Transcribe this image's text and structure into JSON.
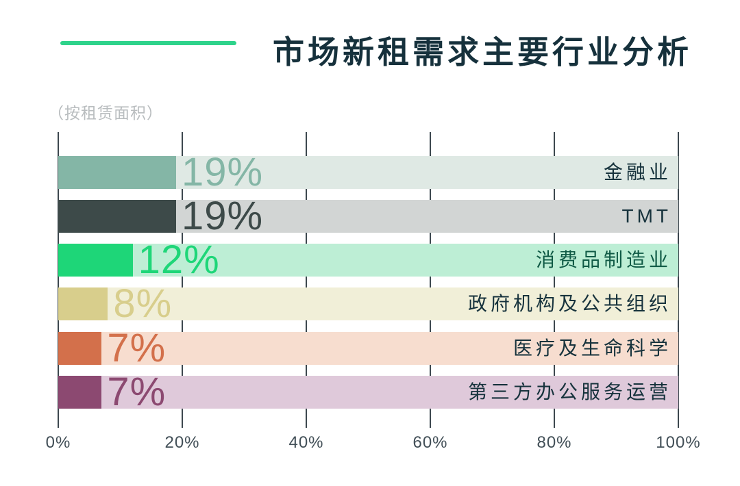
{
  "header": {
    "title": "市场新租需求主要行业分析",
    "subtitle": "（按租赁面积）",
    "accent_color": "#2ed38b",
    "title_color": "#16313c",
    "subtitle_color": "#b9bdbf"
  },
  "axis": {
    "gridline_color": "#3c474e",
    "tick_label_color": "#424f57"
  },
  "chart_data": {
    "type": "bar",
    "orientation": "horizontal",
    "title": "市场新租需求主要行业分析",
    "subtitle": "（按租赁面积）",
    "categories": [
      "金融业",
      "TMT",
      "消费品制造业",
      "政府机构及公共组织",
      "医疗及生命科学",
      "第三方办公服务运营"
    ],
    "values": [
      19,
      19,
      12,
      8,
      7,
      7
    ],
    "unit": "%",
    "xlim": [
      0,
      100
    ],
    "x_ticks": [
      "0%",
      "20%",
      "40%",
      "60%",
      "80%",
      "100%"
    ],
    "grid": true,
    "legend": false,
    "rows": [
      {
        "category": "金融业",
        "value": 19,
        "value_label": "19%",
        "bar_color": "#84b6a6",
        "track_color": "#dfe9e4",
        "category_color": "#16323c"
      },
      {
        "category": "TMT",
        "value": 19,
        "value_label": "19%",
        "bar_color": "#3d4a49",
        "track_color": "#d2d5d4",
        "category_color": "#16323c"
      },
      {
        "category": "消费品制造业",
        "value": 12,
        "value_label": "12%",
        "bar_color": "#1ed678",
        "track_color": "#bdeed5",
        "category_color": "#0f5a45"
      },
      {
        "category": "政府机构及公共组织",
        "value": 8,
        "value_label": "8%",
        "bar_color": "#d8ce8c",
        "track_color": "#f1efd8",
        "category_color": "#16323c"
      },
      {
        "category": "医疗及生命科学",
        "value": 7,
        "value_label": "7%",
        "bar_color": "#d3704b",
        "track_color": "#f7ddcf",
        "category_color": "#16323c"
      },
      {
        "category": "第三方办公服务运营",
        "value": 7,
        "value_label": "7%",
        "bar_color": "#8c4971",
        "track_color": "#dfc9da",
        "category_color": "#16323c"
      }
    ]
  }
}
